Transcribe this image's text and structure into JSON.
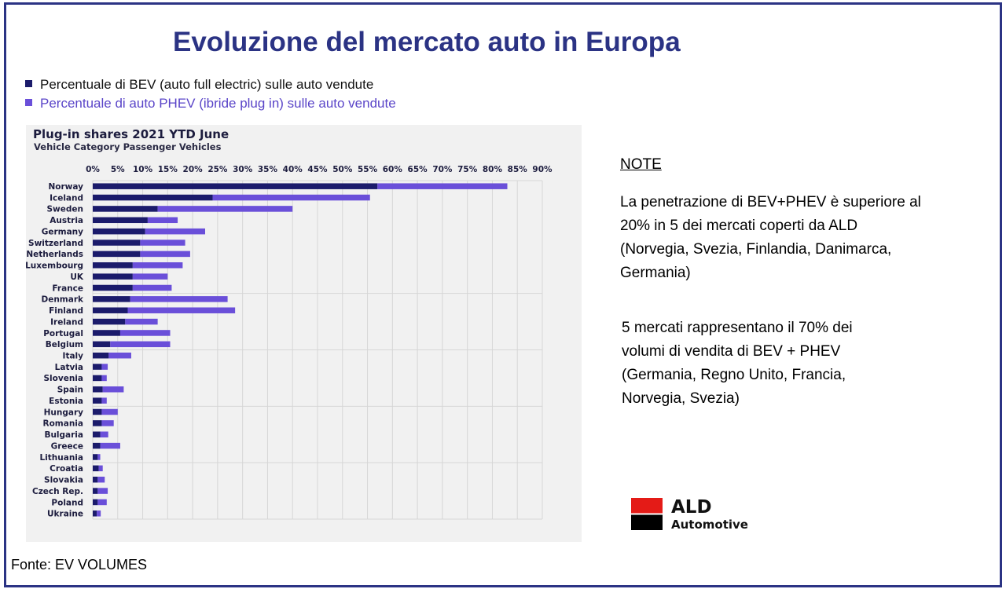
{
  "page": {
    "title": "Evoluzione del mercato auto in Europa",
    "legend": [
      {
        "label": "Percentuale di BEV (auto full electric) sulle auto vendute",
        "color": "#1b1b6b",
        "text_color": "#111111"
      },
      {
        "label": "Percentuale di auto PHEV (ibride plug in) sulle auto vendute",
        "color": "#6a4fd9",
        "text_color": "#5a45c8"
      }
    ],
    "notes": {
      "heading": "NOTE",
      "paragraph1": [
        "La penetrazione di BEV+PHEV è superiore al",
        "20% in 5 dei mercati coperti da ALD",
        "(Norvegia, Svezia, Finlandia, Danimarca,",
        "Germania)"
      ],
      "paragraph2": [
        "5 mercati rappresentano il 70% dei",
        "volumi di vendita di BEV + PHEV",
        "(Germania, Regno Unito, Francia,",
        "Norvegia, Svezia)"
      ]
    },
    "logo": {
      "name": "ALD",
      "tagline": "Automotive"
    },
    "source": "Fonte: EV VOLUMES"
  },
  "chart_data": {
    "type": "bar",
    "orientation": "horizontal",
    "stacked": true,
    "title": "Plug-in shares 2021 YTD June",
    "subtitle": "Vehicle Category Passenger Vehicles",
    "xlim": [
      0,
      90
    ],
    "tick_labels": [
      "0%",
      "5%",
      "10%",
      "15%",
      "20%",
      "25%",
      "30%",
      "35%",
      "40%",
      "45%",
      "50%",
      "55%",
      "60%",
      "65%",
      "70%",
      "75%",
      "80%",
      "85%",
      "90%"
    ],
    "grid": true,
    "legend": "none",
    "categories": [
      "Norway",
      "Iceland",
      "Sweden",
      "Austria",
      "Germany",
      "Switzerland",
      "Netherlands",
      "Luxembourg",
      "UK",
      "France",
      "Denmark",
      "Finland",
      "Ireland",
      "Portugal",
      "Belgium",
      "Italy",
      "Latvia",
      "Slovenia",
      "Spain",
      "Estonia",
      "Hungary",
      "Romania",
      "Bulgaria",
      "Greece",
      "Lithuania",
      "Croatia",
      "Slovakia",
      "Czech Rep.",
      "Poland",
      "Ukraine"
    ],
    "series": [
      {
        "values": [
          57.0,
          24.0,
          13.0,
          11.0,
          10.5,
          9.5,
          9.5,
          8.0,
          8.0,
          8.0,
          7.5,
          7.0,
          6.5,
          5.5,
          3.5,
          3.2,
          1.8,
          1.8,
          2.0,
          1.8,
          1.8,
          1.8,
          1.5,
          1.5,
          1.0,
          1.2,
          1.0,
          1.0,
          1.0,
          0.8
        ],
        "color": "#1b1b6b"
      },
      {
        "values": [
          26.0,
          31.5,
          27.0,
          6.0,
          12.0,
          9.0,
          10.0,
          10.0,
          7.0,
          7.8,
          19.5,
          21.5,
          6.5,
          10.0,
          12.0,
          4.5,
          1.2,
          1.0,
          4.2,
          1.0,
          3.2,
          2.4,
          1.6,
          4.0,
          0.5,
          0.8,
          1.4,
          2.0,
          1.8,
          0.8
        ],
        "color": "#6a4fd9"
      }
    ]
  }
}
